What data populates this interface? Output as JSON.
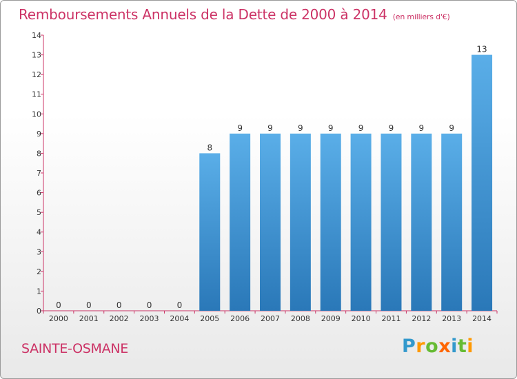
{
  "title": "Remboursements Annuels de la Dette de 2000 à 2014",
  "unit": "(en milliers d'€)",
  "commune": "SAINTE-OSMANE",
  "logo": {
    "letters": [
      "P",
      "r",
      "o",
      "x",
      "i",
      "t",
      "i"
    ],
    "colors": [
      "#3399cc",
      "#ff9900",
      "#66bb33",
      "#ff6600",
      "#3399cc",
      "#66bb33",
      "#ff9900"
    ]
  },
  "colors": {
    "bar_light": "#5aaee8",
    "bar_dark": "#2a78b8",
    "axis": "#cc3366",
    "text": "#333333"
  },
  "chart_data": {
    "type": "bar",
    "categories": [
      "2000",
      "2001",
      "2002",
      "2003",
      "2004",
      "2005",
      "2006",
      "2007",
      "2008",
      "2009",
      "2010",
      "2011",
      "2012",
      "2013",
      "2014"
    ],
    "values": [
      0,
      0,
      0,
      0,
      0,
      8,
      9,
      9,
      9,
      9,
      9,
      9,
      9,
      9,
      13
    ],
    "ylim": [
      0,
      14
    ],
    "yticks": [
      0,
      1,
      2,
      3,
      4,
      5,
      6,
      7,
      8,
      9,
      10,
      11,
      12,
      13,
      14
    ],
    "grid": false,
    "title": "Remboursements Annuels de la Dette de 2000 à 2014",
    "xlabel": "",
    "ylabel": ""
  }
}
